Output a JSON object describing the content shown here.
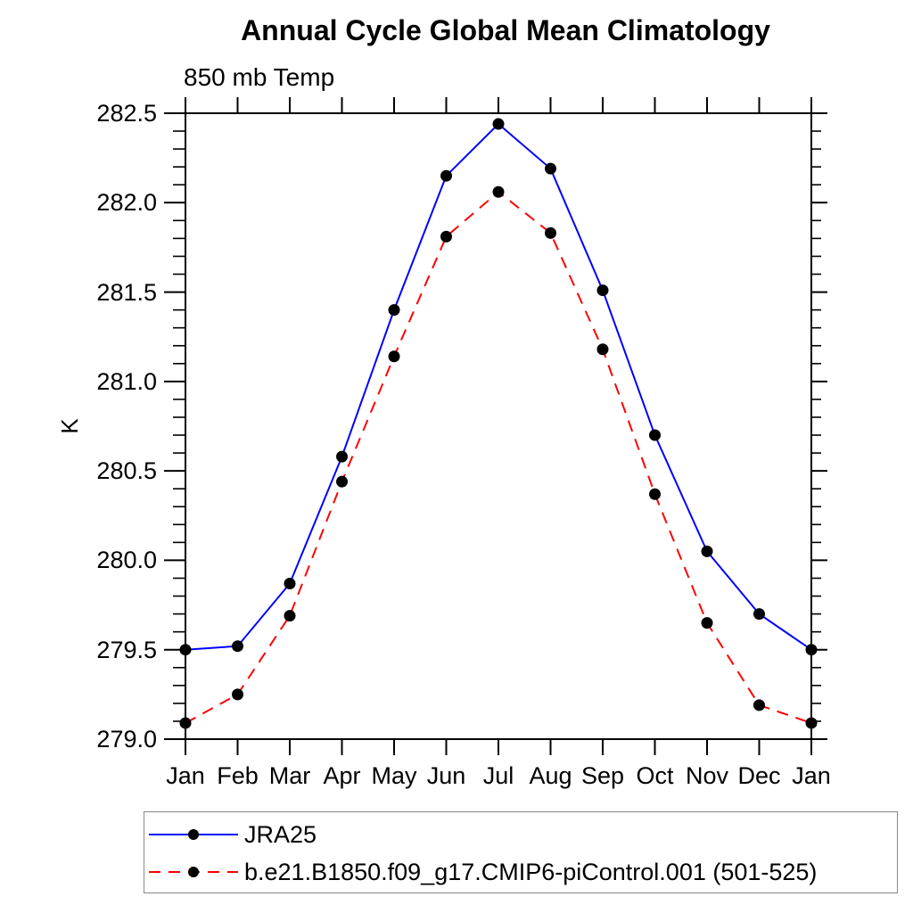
{
  "chart_data": {
    "type": "line",
    "title": "Annual Cycle Global Mean Climatology",
    "subtitle": "850 mb Temp",
    "ylabel": "K",
    "xlabel": "",
    "categories": [
      "Jan",
      "Feb",
      "Mar",
      "Apr",
      "May",
      "Jun",
      "Jul",
      "Aug",
      "Sep",
      "Oct",
      "Nov",
      "Dec",
      "Jan"
    ],
    "ylim": [
      279.0,
      282.5
    ],
    "yticks": [
      "279.0",
      "279.5",
      "280.0",
      "280.5",
      "281.0",
      "281.5",
      "282.0",
      "282.5"
    ],
    "ytick_minor_step": 0.1,
    "grid": false,
    "legend_position": "bottom-left",
    "frame_color": "#000000",
    "marker": "filled-circle",
    "marker_color": "#000000",
    "series": [
      {
        "name": "JRA25",
        "color": "#0000ff",
        "line_style": "solid",
        "values": [
          279.5,
          279.52,
          279.87,
          280.58,
          281.4,
          282.15,
          282.44,
          282.19,
          281.51,
          280.7,
          280.05,
          279.7,
          279.5
        ]
      },
      {
        "name": "b.e21.B1850.f09_g17.CMIP6-piControl.001 (501-525)",
        "color": "#ff0000",
        "line_style": "dashed",
        "values": [
          279.09,
          279.25,
          279.69,
          280.44,
          281.14,
          281.81,
          282.06,
          281.83,
          281.18,
          280.37,
          279.65,
          279.19,
          279.09
        ]
      }
    ]
  }
}
